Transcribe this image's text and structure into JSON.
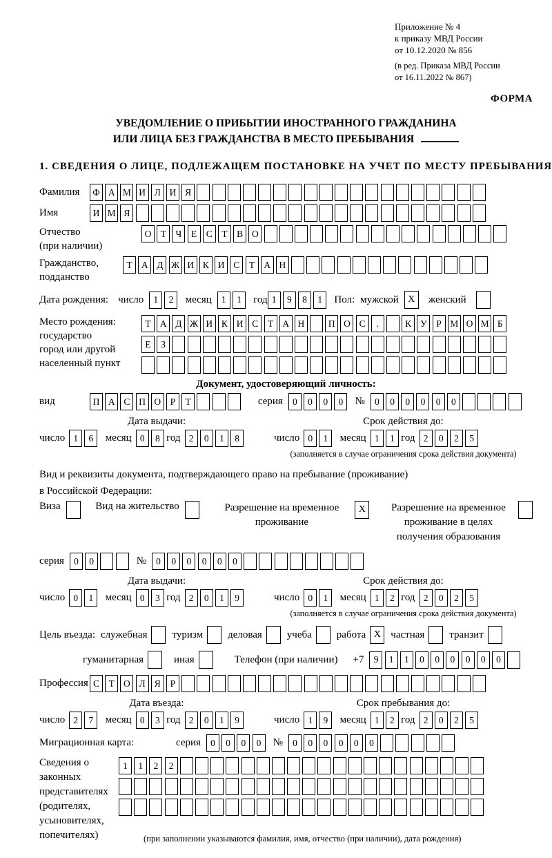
{
  "date_words": {
    "day": "число",
    "month": "месяц",
    "year": "год"
  },
  "meta": {
    "appendix_lines": [
      "Приложение № 4",
      "к приказу МВД России",
      "от 10.12.2020 № 856"
    ],
    "edition_lines": [
      "(в ред. Приказа МВД России",
      "от 16.11.2022 № 867)"
    ],
    "form_label": "ФОРМА"
  },
  "title": {
    "line1": "УВЕДОМЛЕНИЕ О ПРИБЫТИИ ИНОСТРАННОГО ГРАЖДАНИНА",
    "line2": "ИЛИ ЛИЦА БЕЗ ГРАЖДАНСТВА В МЕСТО ПРЕБЫВАНИЯ"
  },
  "section1": {
    "heading": "1. СВЕДЕНИЯ О ЛИЦЕ, ПОДЛЕЖАЩЕМ ПОСТАНОВКЕ НА УЧЕТ ПО МЕСТУ ПРЕБЫВАНИЯ",
    "surname": {
      "label": "Фамилия",
      "cells": {
        "chars": "ФАМИЛИЯ",
        "len": 26
      }
    },
    "given_name": {
      "label": "Имя",
      "cells": {
        "chars": "ИМЯ",
        "len": 26
      }
    },
    "patronymic": {
      "label1": "Отчество",
      "label2": "(при наличии)",
      "cells": {
        "chars": "ОТЧЕСТВО",
        "len": 24
      }
    },
    "citizenship": {
      "label1": "Гражданство,",
      "label2": "подданство",
      "cells": {
        "chars": "ТАДЖИКИСТАН",
        "len": 24
      }
    },
    "birth_date": {
      "label": "Дата рождения:",
      "day": "12",
      "month": "11",
      "year": "1981",
      "sex_label": "Пол:",
      "male_label": "мужской",
      "male": "X",
      "female_label": "женский",
      "female": ""
    },
    "birth_place": {
      "label": "Место рождения:",
      "sublabels": [
        "государство",
        "город или другой",
        "населенный пункт"
      ],
      "row1": {
        "chars": "ТАДЖИКИСТАН ПОС. КУРМОМБ",
        "len": 24
      },
      "row2": {
        "chars": "ЕЗ",
        "len": 24
      },
      "row3": {
        "chars": "",
        "len": 24
      }
    }
  },
  "identity_doc": {
    "heading": "Документ, удостоверяющий личность:",
    "kind_label": "вид",
    "kind": {
      "chars": "ПАСПОРТ",
      "len": 10
    },
    "series_label": "серия",
    "series": {
      "chars": "0000",
      "len": 4
    },
    "number_label": "№",
    "number": {
      "chars": "000000",
      "len": 10
    },
    "issue": {
      "heading": "Дата выдачи:",
      "day": "16",
      "month": "08",
      "year": "2018"
    },
    "expiry": {
      "heading": "Срок действия до:",
      "day": "01",
      "month": "11",
      "year": "2025"
    },
    "footnote": "(заполняется в случае ограничения срока действия документа)"
  },
  "resident_doc": {
    "intro1": "Вид и реквизиты документа, подтверждающего право на пребывание (проживание)",
    "intro2": "в Российской Федерации:",
    "options": [
      {
        "label": "Виза",
        "checked": ""
      },
      {
        "label": "Вид на жительство",
        "checked": ""
      },
      {
        "label": "Разрешение на временное проживание",
        "checked": "X"
      },
      {
        "label": "Разрешение на временное проживание в целях получения образования",
        "checked": ""
      }
    ],
    "series_label": "серия",
    "series": {
      "chars": "00",
      "len": 4
    },
    "number_label": "№",
    "number": {
      "chars": "000000",
      "len": 14
    },
    "issue": {
      "heading": "Дата выдачи:",
      "day": "01",
      "month": "03",
      "year": "2019"
    },
    "expiry": {
      "heading": "Срок действия до:",
      "day": "01",
      "month": "12",
      "year": "2025"
    },
    "footnote": "(заполняется в случае ограничения срока действия документа)"
  },
  "visit": {
    "purpose_label": "Цель въезда:",
    "purposes": [
      {
        "label": "служебная",
        "checked": ""
      },
      {
        "label": "туризм",
        "checked": ""
      },
      {
        "label": "деловая",
        "checked": ""
      },
      {
        "label": "учеба",
        "checked": ""
      },
      {
        "label": "работа",
        "checked": "X"
      },
      {
        "label": "частная",
        "checked": ""
      },
      {
        "label": "транзит",
        "checked": ""
      }
    ],
    "purposes2": [
      {
        "label": "гуманитарная",
        "checked": ""
      },
      {
        "label": "иная",
        "checked": ""
      }
    ],
    "phone_label": "Телефон (при наличии)",
    "phone_prefix": "+7",
    "phone": {
      "chars": "911000000",
      "len": 10
    },
    "profession_label": "Профессия",
    "profession": {
      "chars": "СТОЛЯР",
      "len": 26
    },
    "entry": {
      "heading": "Дата въезда:",
      "day": "27",
      "month": "03",
      "year": "2019"
    },
    "stay": {
      "heading": "Срок пребывания до:",
      "day": "19",
      "month": "12",
      "year": "2025"
    }
  },
  "migration_card": {
    "label": "Миграционная карта:",
    "series_label": "серия",
    "series": {
      "chars": "0000",
      "len": 4
    },
    "number_label": "№",
    "number": {
      "chars": "000000",
      "len": 11
    }
  },
  "representatives": {
    "label_lines": [
      "Сведения о",
      "законных",
      "представителях",
      "(родителях,",
      "усыновителях,",
      "попечителях)"
    ],
    "row1": {
      "chars": "1122",
      "len": 24
    },
    "row2": {
      "chars": "",
      "len": 24
    },
    "row3": {
      "chars": "",
      "len": 24
    },
    "footnote": "(при заполнении указываются фамилия, имя, отчество (при наличии), дата рождения)"
  }
}
